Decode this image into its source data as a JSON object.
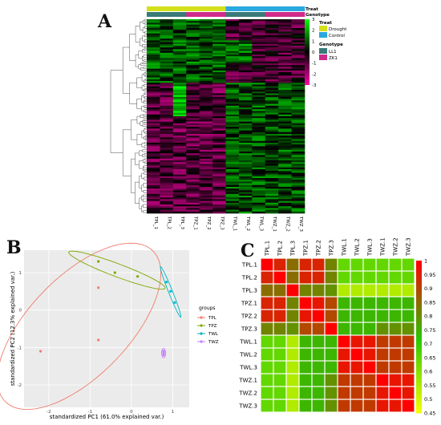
{
  "panels": {
    "A": {
      "letter": "A",
      "col_labels": [
        "TPL_1",
        "TPL_2",
        "TPL_3",
        "TPZ_1",
        "TPZ_2",
        "TPZ_3",
        "TWL_1",
        "TWL_2",
        "TWL_3",
        "TWZ_1",
        "TWZ_2",
        "TWZ_3"
      ],
      "annotation_rows": [
        {
          "name": "Treat",
          "values": [
            "Drought",
            "Drought",
            "Drought",
            "Drought",
            "Drought",
            "Drought",
            "Control",
            "Control",
            "Control",
            "Control",
            "Control",
            "Control"
          ]
        },
        {
          "name": "Genotype",
          "values": [
            "LL1",
            "LL1",
            "LL1",
            "ZK1",
            "ZK1",
            "ZK1",
            "LL1",
            "LL1",
            "LL1",
            "ZK1",
            "ZK1",
            "ZK1"
          ]
        }
      ],
      "colorbar_ticks": [
        "3",
        "2",
        "1",
        "0",
        "-1",
        "-2",
        "-3"
      ],
      "legend": {
        "treat_title": "Treat",
        "treat_items": [
          {
            "label": "Drought",
            "color": "#d4e01a"
          },
          {
            "label": "Control",
            "color": "#2aa8e0"
          }
        ],
        "genotype_title": "Genotype",
        "genotype_items": [
          {
            "label": "LL1",
            "color": "#3a7a78"
          },
          {
            "label": "ZK1",
            "color": "#d02a8a"
          }
        ]
      },
      "colors": {
        "low": "#ff00aa",
        "mid": "#000000",
        "high": "#00ff00"
      }
    },
    "B": {
      "letter": "B",
      "xlabel": "standardized PC1 (61.0% explained var.)",
      "ylabel": "standardized PC2 (12.3% explained var.)",
      "x_ticks": [
        "-2",
        "-1",
        "0",
        "1"
      ],
      "y_ticks": [
        "1",
        "0",
        "-1",
        "-2"
      ],
      "legend_title": "groups",
      "groups": [
        {
          "name": "TPL",
          "color": "#f07c6c"
        },
        {
          "name": "TPZ",
          "color": "#7ca800"
        },
        {
          "name": "TWL",
          "color": "#00b4c4"
        },
        {
          "name": "TWZ",
          "color": "#c77cff"
        }
      ]
    },
    "C": {
      "letter": "C",
      "labels": [
        "TPL.1",
        "TPL.2",
        "TPL.3",
        "TPZ.1",
        "TPZ.2",
        "TPZ.3",
        "TWL.1",
        "TWL.2",
        "TWL.3",
        "TWZ.1",
        "TWZ.2",
        "TWZ.3"
      ],
      "colorbar_ticks": [
        "1",
        "0.95",
        "0.9",
        "0.85",
        "0.8",
        "0.75",
        "0.7",
        "0.65",
        "0.6",
        "0.55",
        "0.5",
        "0.45"
      ]
    }
  },
  "chart_data": [
    {
      "type": "heatmap",
      "title": "",
      "x": [
        "TPL_1",
        "TPL_2",
        "TPL_3",
        "TPZ_1",
        "TPZ_2",
        "TPZ_3",
        "TWL_1",
        "TWL_2",
        "TWL_3",
        "TWZ_1",
        "TWZ_2",
        "TWZ_3"
      ],
      "color_range": [
        -3,
        3
      ]
    },
    {
      "type": "scatter",
      "xlabel": "standardized PC1 (61.0% explained var.)",
      "ylabel": "standardized PC2 (12.3% explained var.)",
      "xlim": [
        -2.6,
        1.4
      ],
      "ylim": [
        -2.6,
        1.6
      ],
      "series": [
        {
          "name": "TPL",
          "x": [
            -0.8,
            -0.8,
            -2.2
          ],
          "y": [
            0.6,
            -0.8,
            -1.1
          ]
        },
        {
          "name": "TPZ",
          "x": [
            -0.8,
            -0.4,
            0.15
          ],
          "y": [
            1.3,
            1.0,
            0.9
          ]
        },
        {
          "name": "TWL",
          "x": [
            0.85,
            0.95,
            1.05
          ],
          "y": [
            0.75,
            0.5,
            0.2
          ]
        },
        {
          "name": "TWZ",
          "x": [
            0.78,
            0.78,
            0.78
          ],
          "y": [
            -1.1,
            -1.15,
            -1.2
          ]
        }
      ]
    },
    {
      "type": "heatmap",
      "x": [
        "TPL.1",
        "TPL.2",
        "TPL.3",
        "TPZ.1",
        "TPZ.2",
        "TPZ.3",
        "TWL.1",
        "TWL.2",
        "TWL.3",
        "TWZ.1",
        "TWZ.2",
        "TWZ.3"
      ],
      "y": [
        "TPL.1",
        "TPL.2",
        "TPL.3",
        "TPZ.1",
        "TPZ.2",
        "TPZ.3",
        "TWL.1",
        "TWL.2",
        "TWL.3",
        "TWZ.1",
        "TWZ.2",
        "TWZ.3"
      ],
      "color_range": [
        0.45,
        1
      ],
      "values": [
        [
          1,
          0.95,
          0.85,
          0.95,
          0.95,
          0.82,
          0.65,
          0.65,
          0.65,
          0.65,
          0.65,
          0.65
        ],
        [
          0.95,
          1,
          0.85,
          0.95,
          0.95,
          0.82,
          0.65,
          0.65,
          0.65,
          0.65,
          0.65,
          0.65
        ],
        [
          0.85,
          0.85,
          1,
          0.82,
          0.82,
          0.8,
          0.55,
          0.55,
          0.55,
          0.55,
          0.55,
          0.55
        ],
        [
          0.95,
          0.95,
          0.82,
          1,
          0.97,
          0.9,
          0.75,
          0.75,
          0.75,
          0.75,
          0.75,
          0.75
        ],
        [
          0.95,
          0.95,
          0.82,
          0.97,
          1,
          0.9,
          0.75,
          0.75,
          0.75,
          0.75,
          0.75,
          0.75
        ],
        [
          0.82,
          0.82,
          0.8,
          0.9,
          0.9,
          1,
          0.75,
          0.75,
          0.75,
          0.8,
          0.8,
          0.8
        ],
        [
          0.65,
          0.65,
          0.55,
          0.75,
          0.75,
          0.75,
          1,
          0.97,
          0.97,
          0.92,
          0.92,
          0.92
        ],
        [
          0.65,
          0.65,
          0.55,
          0.75,
          0.75,
          0.75,
          0.97,
          1,
          0.97,
          0.92,
          0.92,
          0.92
        ],
        [
          0.65,
          0.65,
          0.55,
          0.75,
          0.75,
          0.75,
          0.97,
          0.97,
          1,
          0.92,
          0.92,
          0.92
        ],
        [
          0.65,
          0.65,
          0.55,
          0.75,
          0.75,
          0.8,
          0.92,
          0.92,
          0.92,
          1,
          0.97,
          0.97
        ],
        [
          0.65,
          0.65,
          0.55,
          0.75,
          0.75,
          0.8,
          0.92,
          0.92,
          0.92,
          0.97,
          1,
          0.97
        ],
        [
          0.65,
          0.65,
          0.55,
          0.75,
          0.75,
          0.8,
          0.92,
          0.92,
          0.92,
          0.97,
          0.97,
          1
        ]
      ]
    }
  ]
}
